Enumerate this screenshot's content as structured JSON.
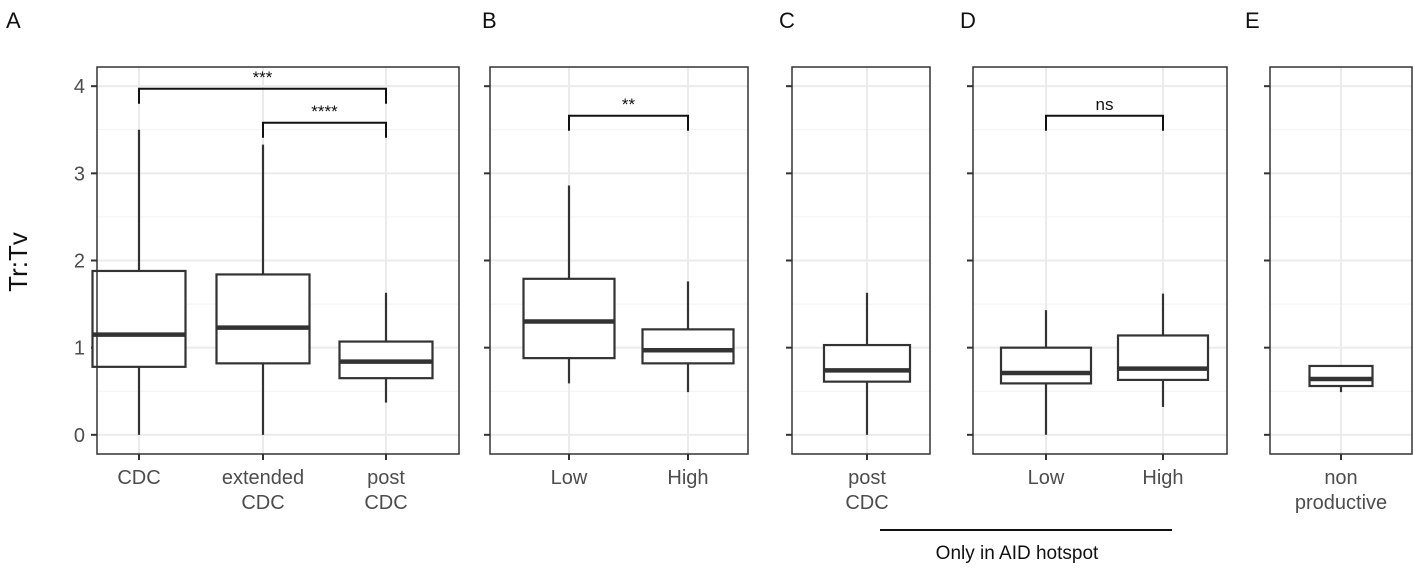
{
  "ylabel": "Tr:Tv",
  "y_ticks": [
    "0",
    "1",
    "2",
    "3",
    "4"
  ],
  "footnote": "Only in AID hotspot",
  "chart_data": [
    {
      "panel": "A",
      "type": "boxplot",
      "ylabel": "Tr:Tv",
      "ylim": [
        -0.22,
        4.22
      ],
      "y_ticks": [
        0,
        1,
        2,
        3,
        4
      ],
      "categories": [
        [
          "CDC"
        ],
        [
          "extended",
          "CDC"
        ],
        [
          "post",
          "CDC"
        ]
      ],
      "boxes": [
        {
          "min": 0.0,
          "q1": 0.78,
          "median": 1.15,
          "q3": 1.88,
          "max": 3.5
        },
        {
          "min": 0.0,
          "q1": 0.82,
          "median": 1.23,
          "q3": 1.84,
          "max": 3.33
        },
        {
          "min": 0.37,
          "q1": 0.65,
          "median": 0.84,
          "q3": 1.07,
          "max": 1.63
        }
      ],
      "brackets": [
        {
          "from": 0,
          "to": 2,
          "y": 3.97,
          "label": "***"
        },
        {
          "from": 1,
          "to": 2,
          "y": 3.58,
          "label": "****"
        }
      ]
    },
    {
      "panel": "B",
      "type": "boxplot",
      "ylim": [
        -0.22,
        4.22
      ],
      "categories": [
        [
          "Low"
        ],
        [
          "High"
        ]
      ],
      "boxes": [
        {
          "min": 0.59,
          "q1": 0.88,
          "median": 1.3,
          "q3": 1.79,
          "max": 2.86
        },
        {
          "min": 0.49,
          "q1": 0.82,
          "median": 0.97,
          "q3": 1.21,
          "max": 1.76
        }
      ],
      "brackets": [
        {
          "from": 0,
          "to": 1,
          "y": 3.66,
          "label": "**"
        }
      ]
    },
    {
      "panel": "C",
      "type": "boxplot",
      "ylim": [
        -0.22,
        4.22
      ],
      "categories": [
        [
          "post",
          "CDC"
        ]
      ],
      "boxes": [
        {
          "min": 0.0,
          "q1": 0.61,
          "median": 0.74,
          "q3": 1.03,
          "max": 1.63
        }
      ],
      "brackets": []
    },
    {
      "panel": "D",
      "type": "boxplot",
      "ylim": [
        -0.22,
        4.22
      ],
      "categories": [
        [
          "Low"
        ],
        [
          "High"
        ]
      ],
      "boxes": [
        {
          "min": 0.0,
          "q1": 0.59,
          "median": 0.71,
          "q3": 1.0,
          "max": 1.43
        },
        {
          "min": 0.32,
          "q1": 0.63,
          "median": 0.76,
          "q3": 1.14,
          "max": 1.62
        }
      ],
      "brackets": [
        {
          "from": 0,
          "to": 1,
          "y": 3.66,
          "label": "ns"
        }
      ]
    },
    {
      "panel": "E",
      "type": "boxplot",
      "ylim": [
        -0.22,
        4.22
      ],
      "categories": [
        [
          "non",
          "productive"
        ]
      ],
      "boxes": [
        {
          "min": 0.49,
          "q1": 0.56,
          "median": 0.64,
          "q3": 0.79,
          "max": 0.79
        }
      ],
      "brackets": []
    }
  ]
}
